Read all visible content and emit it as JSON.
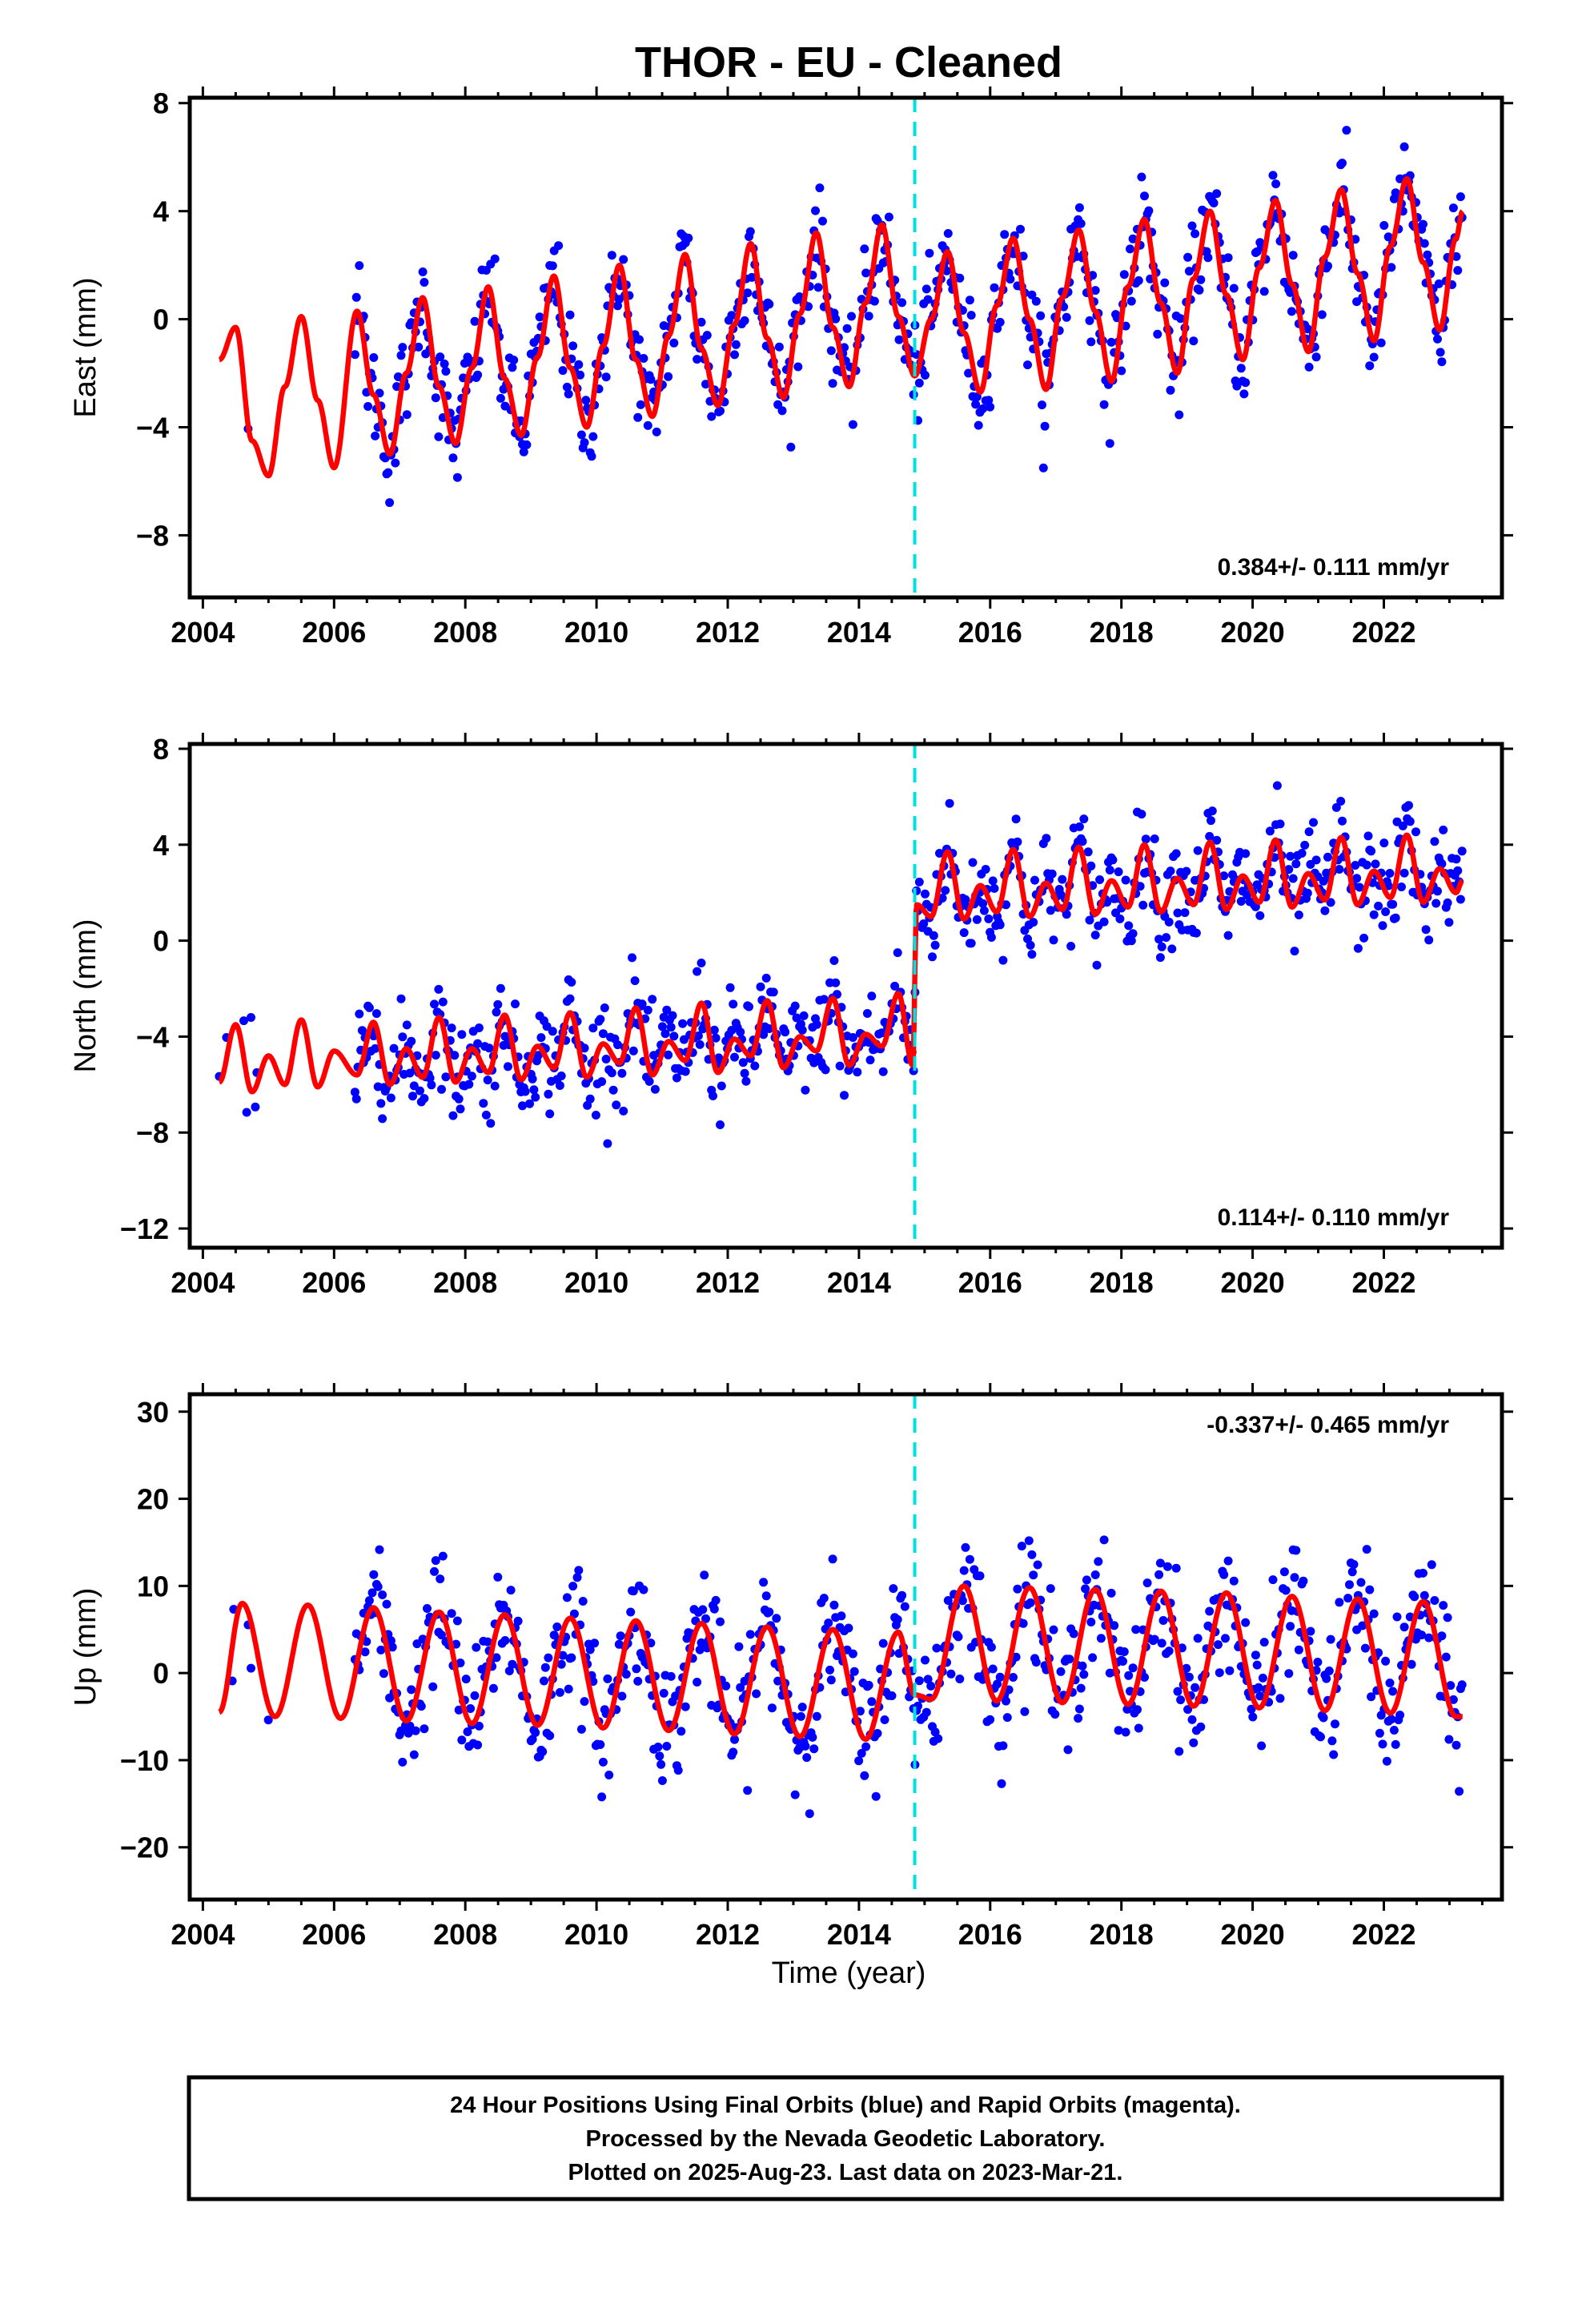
{
  "title": "THOR  - EU - Cleaned",
  "xlabel": "Time (year)",
  "caption": {
    "lines": [
      "24 Hour Positions Using Final Orbits (blue) and Rapid Orbits (magenta).",
      "Processed by the Nevada Geodetic Laboratory.",
      "Plotted on 2025-Aug-23. Last data on 2023-Mar-21."
    ]
  },
  "colors": {
    "points": "#0000ff",
    "model": "#ff0000",
    "event": "#00e0e0",
    "frame": "#000000"
  },
  "chart_data": [
    {
      "type": "scatter",
      "ylabel": "East (mm)",
      "rate_text": "0.384+/- 0.111 mm/yr",
      "xlim": [
        2003.8,
        2023.8
      ],
      "ylim": [
        -10.3,
        8.2
      ],
      "xticks": [
        2004,
        2006,
        2008,
        2010,
        2012,
        2014,
        2016,
        2018,
        2020,
        2022
      ],
      "yticks": [
        -8,
        -4,
        0,
        4,
        8
      ],
      "event_x": 2014.85,
      "series": [
        {
          "type": "line",
          "x": [
            2004.25,
            2004.5,
            2004.75,
            2005.0,
            2005.25,
            2005.5,
            2005.75,
            2006.0,
            2006.35,
            2006.6,
            2006.85,
            2007.1,
            2007.35,
            2007.6,
            2007.85,
            2008.1,
            2008.35,
            2008.6,
            2008.85,
            2009.1,
            2009.35,
            2009.6,
            2009.85,
            2010.1,
            2010.35,
            2010.6,
            2010.85,
            2011.1,
            2011.35,
            2011.6,
            2011.85,
            2012.1,
            2012.35,
            2012.6,
            2012.85,
            2013.1,
            2013.35,
            2013.6,
            2013.85,
            2014.1,
            2014.35,
            2014.6,
            2014.85,
            2015.1,
            2015.35,
            2015.6,
            2015.85,
            2016.1,
            2016.35,
            2016.6,
            2016.85,
            2017.1,
            2017.35,
            2017.6,
            2017.85,
            2018.1,
            2018.35,
            2018.6,
            2018.85,
            2019.1,
            2019.35,
            2019.6,
            2019.85,
            2020.1,
            2020.35,
            2020.6,
            2020.85,
            2021.1,
            2021.35,
            2021.6,
            2021.85,
            2022.1,
            2022.35,
            2022.6,
            2022.85,
            2023.1,
            2023.2
          ],
          "y": [
            -1.5,
            -0.3,
            -4.5,
            -5.8,
            -2.5,
            0.1,
            -3.0,
            -5.5,
            0.3,
            -2.8,
            -5.0,
            -2.0,
            0.8,
            -2.5,
            -4.6,
            -1.8,
            1.2,
            -2.2,
            -4.3,
            -1.4,
            1.6,
            -1.8,
            -4.0,
            -1.0,
            2.0,
            -1.5,
            -3.6,
            -0.6,
            2.4,
            -1.1,
            -3.2,
            -0.2,
            2.8,
            -0.7,
            -2.9,
            0.2,
            3.2,
            -0.3,
            -2.5,
            0.6,
            3.5,
            0.1,
            -2.1,
            0.0,
            2.5,
            -0.5,
            -2.7,
            0.5,
            3.0,
            0.0,
            -2.6,
            0.8,
            3.3,
            0.3,
            -2.3,
            1.2,
            3.7,
            0.6,
            -2.0,
            1.5,
            4.0,
            0.9,
            -1.5,
            1.9,
            4.4,
            1.3,
            -1.2,
            2.3,
            4.8,
            1.7,
            -0.8,
            2.7,
            5.2,
            2.1,
            -0.4,
            3.0,
            4.0
          ]
        }
      ]
    },
    {
      "type": "scatter",
      "ylabel": "North (mm)",
      "rate_text": "0.114+/- 0.110 mm/yr",
      "xlim": [
        2003.8,
        2023.8
      ],
      "ylim": [
        -12.8,
        8.2
      ],
      "xticks": [
        2004,
        2006,
        2008,
        2010,
        2012,
        2014,
        2016,
        2018,
        2020,
        2022
      ],
      "yticks": [
        -12,
        -8,
        -4,
        0,
        4,
        8
      ],
      "event_x": 2014.85,
      "series": [
        {
          "type": "line",
          "x": [
            2004.25,
            2004.5,
            2004.75,
            2005.0,
            2005.25,
            2005.5,
            2005.75,
            2006.0,
            2006.35,
            2006.6,
            2006.85,
            2007.1,
            2007.35,
            2007.6,
            2007.85,
            2008.1,
            2008.35,
            2008.6,
            2008.85,
            2009.1,
            2009.35,
            2009.6,
            2009.85,
            2010.1,
            2010.35,
            2010.6,
            2010.85,
            2011.1,
            2011.35,
            2011.6,
            2011.85,
            2012.1,
            2012.35,
            2012.6,
            2012.85,
            2013.1,
            2013.35,
            2013.6,
            2013.85,
            2014.1,
            2014.35,
            2014.6,
            2014.82,
            2014.88,
            2015.1,
            2015.35,
            2015.6,
            2015.85,
            2016.1,
            2016.35,
            2016.6,
            2016.85,
            2017.1,
            2017.35,
            2017.6,
            2017.85,
            2018.1,
            2018.35,
            2018.6,
            2018.85,
            2019.1,
            2019.35,
            2019.6,
            2019.85,
            2020.1,
            2020.35,
            2020.6,
            2020.85,
            2021.1,
            2021.35,
            2021.6,
            2021.85,
            2022.1,
            2022.35,
            2022.6,
            2022.85,
            2023.1,
            2023.2
          ],
          "y": [
            -5.9,
            -3.5,
            -6.3,
            -4.8,
            -6.0,
            -3.3,
            -6.1,
            -4.6,
            -5.6,
            -3.4,
            -6.0,
            -4.5,
            -5.7,
            -3.2,
            -5.9,
            -4.5,
            -5.5,
            -3.1,
            -5.8,
            -4.4,
            -5.3,
            -3.0,
            -5.7,
            -4.3,
            -5.1,
            -2.8,
            -5.6,
            -4.2,
            -5.0,
            -2.6,
            -5.5,
            -4.1,
            -4.8,
            -2.5,
            -5.3,
            -4.0,
            -4.6,
            -2.4,
            -5.2,
            -3.9,
            -4.4,
            -2.2,
            -5.2,
            1.5,
            1.0,
            3.7,
            0.9,
            2.3,
            1.2,
            3.8,
            1.0,
            2.4,
            1.3,
            3.9,
            1.1,
            2.5,
            1.4,
            4.0,
            1.2,
            2.6,
            1.5,
            4.1,
            1.3,
            2.7,
            1.6,
            4.2,
            1.4,
            2.8,
            1.7,
            4.3,
            1.5,
            2.9,
            1.8,
            4.4,
            1.6,
            3.0,
            2.0,
            2.5
          ]
        }
      ]
    },
    {
      "type": "scatter",
      "ylabel": "Up (mm)",
      "rate_text": "-0.337+/- 0.465 mm/yr",
      "xlim": [
        2003.8,
        2023.8
      ],
      "ylim": [
        -26,
        32
      ],
      "xticks": [
        2004,
        2006,
        2008,
        2010,
        2012,
        2014,
        2016,
        2018,
        2020,
        2022
      ],
      "yticks": [
        -20,
        -10,
        0,
        10,
        20,
        30
      ],
      "event_x": 2014.85,
      "series": [
        {
          "type": "line",
          "x": [
            2004.25,
            2004.6,
            2005.1,
            2005.6,
            2006.1,
            2006.6,
            2007.1,
            2007.6,
            2008.1,
            2008.6,
            2009.1,
            2009.6,
            2010.1,
            2010.6,
            2011.1,
            2011.6,
            2012.1,
            2012.6,
            2013.1,
            2013.6,
            2014.1,
            2014.6,
            2014.85,
            2015.1,
            2015.6,
            2016.1,
            2016.6,
            2017.1,
            2017.6,
            2018.1,
            2018.6,
            2019.1,
            2019.6,
            2020.1,
            2020.6,
            2021.1,
            2021.6,
            2022.1,
            2022.6,
            2023.1,
            2023.2
          ],
          "y": [
            -4.5,
            8.0,
            -5.0,
            7.8,
            -5.2,
            7.5,
            -5.5,
            7.0,
            -5.8,
            6.7,
            -6.0,
            6.3,
            -6.3,
            6.0,
            -6.6,
            5.7,
            -7.0,
            5.3,
            -7.3,
            5.0,
            -7.6,
            4.7,
            -2.5,
            -3.0,
            10.0,
            -3.2,
            9.8,
            -3.4,
            9.6,
            -3.6,
            9.4,
            -3.8,
            9.2,
            -4.0,
            8.8,
            -4.3,
            8.5,
            -4.6,
            8.2,
            -5.0,
            -5.0
          ]
        }
      ]
    }
  ]
}
